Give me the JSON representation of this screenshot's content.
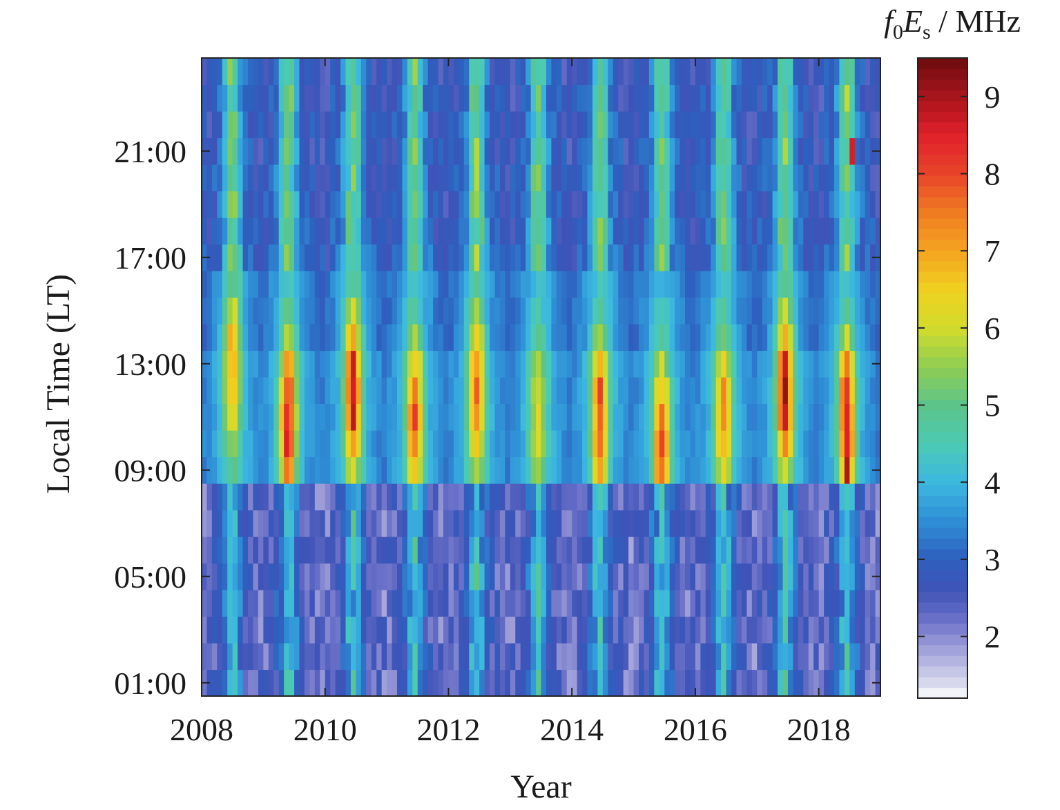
{
  "chart_data": {
    "type": "heatmap",
    "title": "",
    "xlabel": "Year",
    "ylabel": "Local Time (LT)",
    "colorbar": {
      "title_base": "f",
      "title_sub1": "0",
      "title_mid": "E",
      "title_sub2": "s",
      "title_unit": " / MHz",
      "range": [
        1.2,
        9.5
      ],
      "ticks": [
        2,
        3,
        4,
        5,
        6,
        7,
        8,
        9
      ],
      "tick_labels": [
        "2",
        "3",
        "4",
        "5",
        "6",
        "7",
        "8",
        "9"
      ]
    },
    "xlim": [
      2008,
      2019
    ],
    "x_ticks": [
      2008,
      2010,
      2012,
      2014,
      2016,
      2018
    ],
    "x_tick_labels": [
      "2008",
      "2010",
      "2012",
      "2014",
      "2016",
      "2018"
    ],
    "ylim": [
      0.5,
      24.5
    ],
    "y_ticks": [
      1,
      5,
      9,
      13,
      17,
      21
    ],
    "y_tick_labels": [
      "01:00",
      "05:00",
      "09:00",
      "13:00",
      "17:00",
      "21:00"
    ],
    "x_bin_width_years": 0.0833,
    "y_bins_hours": [
      1,
      2,
      3,
      4,
      5,
      6,
      7,
      8,
      9,
      10,
      11,
      12,
      13,
      14,
      15,
      16,
      17,
      18,
      19,
      20,
      21,
      22,
      23,
      24
    ],
    "summer_peaks": [
      {
        "year": 2008.5,
        "max_value": 7.6,
        "peak_hour": 13
      },
      {
        "year": 2009.4,
        "max_value": 9.3,
        "peak_hour": 11
      },
      {
        "year": 2010.45,
        "max_value": 9.4,
        "peak_hour": 12
      },
      {
        "year": 2011.45,
        "max_value": 8.3,
        "peak_hour": 11
      },
      {
        "year": 2012.45,
        "max_value": 8.2,
        "peak_hour": 12
      },
      {
        "year": 2013.45,
        "max_value": 6.6,
        "peak_hour": 11
      },
      {
        "year": 2014.45,
        "max_value": 8.6,
        "peak_hour": 11
      },
      {
        "year": 2015.45,
        "max_value": 8.6,
        "peak_hour": 10
      },
      {
        "year": 2016.45,
        "max_value": 7.8,
        "peak_hour": 11
      },
      {
        "year": 2017.45,
        "max_value": 9.3,
        "peak_hour": 12
      },
      {
        "year": 2018.45,
        "max_value": 9.2,
        "peak_hour": 11
      }
    ],
    "colormap": {
      "stops": [
        [
          1.2,
          "#ffffff"
        ],
        [
          1.4,
          "#d8d8ee"
        ],
        [
          1.8,
          "#a6a6dc"
        ],
        [
          2.2,
          "#6c72c8"
        ],
        [
          2.6,
          "#3f53b8"
        ],
        [
          3.0,
          "#2e5fbe"
        ],
        [
          3.5,
          "#2f8fd6"
        ],
        [
          4.0,
          "#3cb8e0"
        ],
        [
          4.5,
          "#4ccab4"
        ],
        [
          5.0,
          "#5cc488"
        ],
        [
          5.5,
          "#8fce52"
        ],
        [
          6.0,
          "#d2dc2c"
        ],
        [
          6.5,
          "#f0d020"
        ],
        [
          7.0,
          "#f4a420"
        ],
        [
          7.5,
          "#f07c22"
        ],
        [
          8.0,
          "#e8442a"
        ],
        [
          8.5,
          "#e0202a"
        ],
        [
          9.0,
          "#a8141c"
        ],
        [
          9.5,
          "#6a0c0e"
        ]
      ]
    }
  }
}
